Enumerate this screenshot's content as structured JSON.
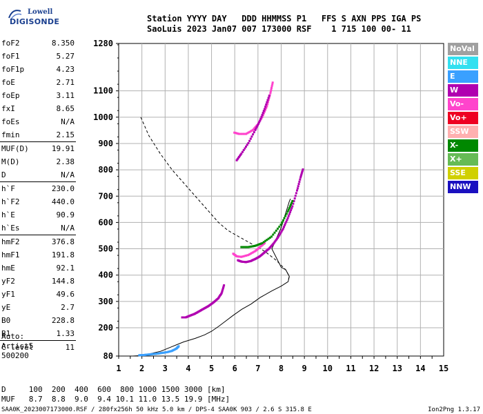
{
  "logo": {
    "line1": "Lowell",
    "line2": "DIGISONDE"
  },
  "header": {
    "line1": "Station YYYY DAY   DDD HHMMSS P1   FFS S AXN PPS IGA PS",
    "line2": "SaoLuis 2023 Jan07 007 173000 RSF    1 715 100 00- 11"
  },
  "params": [
    {
      "k": "foF2",
      "v": "8.350"
    },
    {
      "k": "foF1",
      "v": "5.27"
    },
    {
      "k": "foF1p",
      "v": "4.23"
    },
    {
      "k": "foE",
      "v": "2.71"
    },
    {
      "k": "foEp",
      "v": "3.11"
    },
    {
      "k": "fxI",
      "v": "8.65"
    },
    {
      "k": "foEs",
      "v": "N/A"
    },
    {
      "k": "fmin",
      "v": "2.15"
    },
    {
      "k": "MUF(D)",
      "v": "19.91"
    },
    {
      "k": "M(D)",
      "v": "2.38"
    },
    {
      "k": "D",
      "v": "N/A"
    },
    {
      "k": "h`F",
      "v": "230.0"
    },
    {
      "k": "h`F2",
      "v": "440.0"
    },
    {
      "k": "h`E",
      "v": "90.9"
    },
    {
      "k": "h`Es",
      "v": "N/A"
    },
    {
      "k": "hmF2",
      "v": "376.8"
    },
    {
      "k": "hmF1",
      "v": "191.8"
    },
    {
      "k": "hmE",
      "v": "92.1"
    },
    {
      "k": "yF2",
      "v": "144.8"
    },
    {
      "k": "yF1",
      "v": "49.6"
    },
    {
      "k": "yE",
      "v": "2.7"
    },
    {
      "k": "B0",
      "v": "228.8"
    },
    {
      "k": "B1",
      "v": "1.33"
    },
    {
      "k": "C-level",
      "v": "11"
    }
  ],
  "auto": {
    "line1": "Auto:",
    "line2": "Artist5",
    "line3": "500200"
  },
  "legend": [
    {
      "label": "NoVal",
      "color": "#a0a0a0"
    },
    {
      "label": "NNE",
      "color": "#33e0f0"
    },
    {
      "label": "E",
      "color": "#3aa0ff"
    },
    {
      "label": "W",
      "color": "#b000b0"
    },
    {
      "label": "Vo-",
      "color": "#ff44cc"
    },
    {
      "label": "Vo+",
      "color": "#ee0022"
    },
    {
      "label": "SSW",
      "color": "#ffb0b0"
    },
    {
      "label": "X-",
      "color": "#008800"
    },
    {
      "label": "X+",
      "color": "#66bb55"
    },
    {
      "label": "SSE",
      "color": "#d0d000"
    },
    {
      "label": "NNW",
      "color": "#1a10c0"
    }
  ],
  "footer": {
    "d_line": "D     100  200  400  600  800 1000 1500 3000 [km]",
    "muf_line": "MUF   8.7  8.8  9.0  9.4 10.1 11.0 13.5 19.9 [MHz]",
    "file_line": "SAA0K_2023007173000.RSF / 280fx256h 50 kHz 5.0 km / DPS-4 SAA0K 903 / 2.6 S 315.8 E",
    "version": "Ion2Png 1.3.17"
  },
  "chart_data": {
    "type": "scatter",
    "xlim": [
      1,
      15
    ],
    "ylim": [
      80,
      1280
    ],
    "x_ticks": [
      "1",
      "2",
      "3",
      "4",
      "5",
      "6",
      "7",
      "8",
      "9",
      "10",
      "11",
      "12",
      "13",
      "14",
      "15"
    ],
    "y_ticks": [
      "80",
      "200",
      "300",
      "400",
      "500",
      "600",
      "700",
      "800",
      "900",
      "1000",
      "1100",
      "1280"
    ],
    "grid": true,
    "profile_dashed": [
      [
        1.95,
        1000
      ],
      [
        2.3,
        930
      ],
      [
        2.8,
        860
      ],
      [
        3.3,
        800
      ],
      [
        3.9,
        740
      ],
      [
        4.4,
        690
      ],
      [
        4.9,
        640
      ],
      [
        5.3,
        600
      ],
      [
        5.7,
        570
      ],
      [
        6.2,
        545
      ],
      [
        6.8,
        515
      ],
      [
        7.3,
        490
      ],
      [
        7.8,
        455
      ],
      [
        8.2,
        420
      ],
      [
        8.35,
        395
      ],
      [
        8.3,
        380
      ]
    ],
    "profile_solid": [
      [
        1.0,
        80
      ],
      [
        1.6,
        80
      ],
      [
        2.0,
        82
      ],
      [
        2.8,
        100
      ],
      [
        3.3,
        120
      ],
      [
        3.8,
        140
      ],
      [
        4.3,
        155
      ],
      [
        4.7,
        170
      ],
      [
        5.0,
        185
      ],
      [
        5.3,
        205
      ],
      [
        5.6,
        225
      ],
      [
        5.9,
        245
      ],
      [
        6.3,
        270
      ],
      [
        6.7,
        290
      ],
      [
        7.1,
        315
      ],
      [
        7.6,
        340
      ],
      [
        8.0,
        358
      ],
      [
        8.3,
        375
      ],
      [
        8.35,
        395
      ],
      [
        8.2,
        420
      ],
      [
        8.0,
        430
      ],
      [
        7.6,
        500
      ],
      [
        8.0,
        580
      ],
      [
        8.35,
        680
      ],
      [
        8.4,
        690
      ]
    ],
    "traces": [
      {
        "series": "E",
        "points": [
          [
            1.9,
            82
          ],
          [
            2.1,
            83
          ],
          [
            2.3,
            85
          ],
          [
            2.5,
            87
          ],
          [
            2.7,
            89
          ],
          [
            2.9,
            92
          ],
          [
            3.1,
            95
          ],
          [
            3.3,
            100
          ],
          [
            3.5,
            110
          ],
          [
            3.6,
            120
          ]
        ]
      },
      {
        "series": "W",
        "points": [
          [
            3.75,
            238
          ],
          [
            3.9,
            238
          ],
          [
            4.1,
            245
          ],
          [
            4.3,
            252
          ],
          [
            4.5,
            262
          ],
          [
            4.7,
            272
          ],
          [
            4.9,
            282
          ],
          [
            5.1,
            295
          ],
          [
            5.3,
            310
          ],
          [
            5.45,
            330
          ],
          [
            5.55,
            360
          ]
        ]
      },
      {
        "series": "W",
        "points": [
          [
            6.15,
            455
          ],
          [
            6.3,
            450
          ],
          [
            6.5,
            448
          ],
          [
            6.7,
            452
          ],
          [
            6.9,
            460
          ],
          [
            7.1,
            470
          ],
          [
            7.3,
            485
          ],
          [
            7.5,
            500
          ],
          [
            7.7,
            520
          ],
          [
            7.9,
            545
          ],
          [
            8.1,
            575
          ],
          [
            8.3,
            615
          ],
          [
            8.5,
            660
          ],
          [
            8.7,
            720
          ],
          [
            8.85,
            770
          ],
          [
            8.95,
            800
          ]
        ]
      },
      {
        "series": "Vo-",
        "points": [
          [
            5.95,
            480
          ],
          [
            6.1,
            470
          ],
          [
            6.3,
            468
          ],
          [
            6.6,
            475
          ],
          [
            6.9,
            490
          ],
          [
            7.1,
            505
          ],
          [
            7.3,
            520
          ]
        ]
      },
      {
        "series": "Vo-",
        "points": [
          [
            6.0,
            940
          ],
          [
            6.2,
            935
          ],
          [
            6.5,
            935
          ],
          [
            6.8,
            950
          ],
          [
            7.0,
            970
          ],
          [
            7.2,
            1000
          ],
          [
            7.4,
            1040
          ],
          [
            7.55,
            1090
          ],
          [
            7.65,
            1130
          ]
        ]
      },
      {
        "series": "W",
        "points": [
          [
            6.1,
            835
          ],
          [
            6.3,
            860
          ],
          [
            6.6,
            900
          ],
          [
            6.9,
            950
          ],
          [
            7.1,
            985
          ],
          [
            7.3,
            1030
          ],
          [
            7.5,
            1080
          ]
        ]
      },
      {
        "series": "X-",
        "points": [
          [
            6.3,
            505
          ],
          [
            6.6,
            505
          ],
          [
            6.9,
            510
          ],
          [
            7.2,
            520
          ],
          [
            7.6,
            545
          ],
          [
            8.0,
            590
          ],
          [
            8.3,
            640
          ],
          [
            8.5,
            680
          ]
        ]
      }
    ]
  }
}
